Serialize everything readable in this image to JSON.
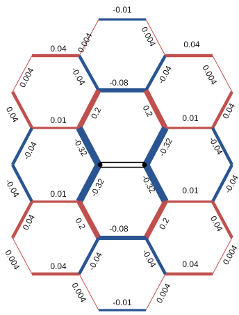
{
  "colors": {
    "negative": "#2b5592",
    "positive": "#c0504d",
    "center_bond": "#000000"
  },
  "edges": [
    {
      "id": "e-top-top",
      "value": -0.01,
      "label": "-0.01"
    },
    {
      "id": "e-top-left",
      "value": 0.004,
      "label": "0.004"
    },
    {
      "id": "e-top-right",
      "value": 0.004,
      "label": "0.004"
    },
    {
      "id": "e-top-lower-left",
      "value": -0.04,
      "label": "-0.04"
    },
    {
      "id": "e-top-lower-right",
      "value": -0.04,
      "label": "-0.04"
    },
    {
      "id": "e-top-bottom",
      "value": -0.08,
      "label": "-0.08"
    },
    {
      "id": "e-ul-top",
      "value": 0.04,
      "label": "0.04"
    },
    {
      "id": "e-ul-upper-left",
      "value": 0.004,
      "label": "0.004"
    },
    {
      "id": "e-ul-left",
      "value": 0.04,
      "label": "0.04"
    },
    {
      "id": "e-ul-bottom",
      "value": 0.01,
      "label": "0.01"
    },
    {
      "id": "e-ul-lower-right",
      "value": 0.2,
      "label": "0.2"
    },
    {
      "id": "e-ur-top",
      "value": 0.04,
      "label": "0.04"
    },
    {
      "id": "e-ur-upper-right",
      "value": 0.004,
      "label": "0.004"
    },
    {
      "id": "e-ur-right",
      "value": 0.04,
      "label": "0.04"
    },
    {
      "id": "e-ur-bottom",
      "value": 0.01,
      "label": "0.01"
    },
    {
      "id": "e-ur-lower-left",
      "value": 0.2,
      "label": "0.2"
    },
    {
      "id": "e-ml-upper-left",
      "value": -0.04,
      "label": "-0.04"
    },
    {
      "id": "e-ml-lower-left",
      "value": -0.04,
      "label": "-0.04"
    },
    {
      "id": "e-ml-upper-right",
      "value": -0.32,
      "label": "-0.32"
    },
    {
      "id": "e-ml-lower-right",
      "value": -0.32,
      "label": "-0.32"
    },
    {
      "id": "e-mr-upper-right",
      "value": -0.04,
      "label": "-0.04"
    },
    {
      "id": "e-mr-lower-right",
      "value": -0.04,
      "label": "-0.04"
    },
    {
      "id": "e-mr-upper-left",
      "value": -0.32,
      "label": "-0.32"
    },
    {
      "id": "e-mr-lower-left",
      "value": -0.32,
      "label": "-0.32"
    },
    {
      "id": "e-ll-top",
      "value": 0.01,
      "label": "0.01"
    },
    {
      "id": "e-ll-left",
      "value": 0.04,
      "label": "0.04"
    },
    {
      "id": "e-ll-lower-left",
      "value": 0.004,
      "label": "0.004"
    },
    {
      "id": "e-ll-bottom",
      "value": 0.04,
      "label": "0.04"
    },
    {
      "id": "e-ll-upper-right",
      "value": 0.2,
      "label": "0.2"
    },
    {
      "id": "e-lr-top",
      "value": 0.01,
      "label": "0.01"
    },
    {
      "id": "e-lr-right",
      "value": 0.04,
      "label": "0.04"
    },
    {
      "id": "e-lr-lower-right",
      "value": 0.004,
      "label": "0.004"
    },
    {
      "id": "e-lr-bottom",
      "value": 0.04,
      "label": "0.04"
    },
    {
      "id": "e-lr-upper-left",
      "value": 0.2,
      "label": "0.2"
    },
    {
      "id": "e-bot-top",
      "value": -0.08,
      "label": "-0.08"
    },
    {
      "id": "e-bot-upper-left",
      "value": -0.04,
      "label": "-0.04"
    },
    {
      "id": "e-bot-upper-right",
      "value": -0.04,
      "label": "-0.04"
    },
    {
      "id": "e-bot-lower-left",
      "value": 0.004,
      "label": "0.004"
    },
    {
      "id": "e-bot-lower-right",
      "value": 0.004,
      "label": "0.004"
    },
    {
      "id": "e-bot-bottom",
      "value": -0.01,
      "label": "-0.01"
    }
  ]
}
